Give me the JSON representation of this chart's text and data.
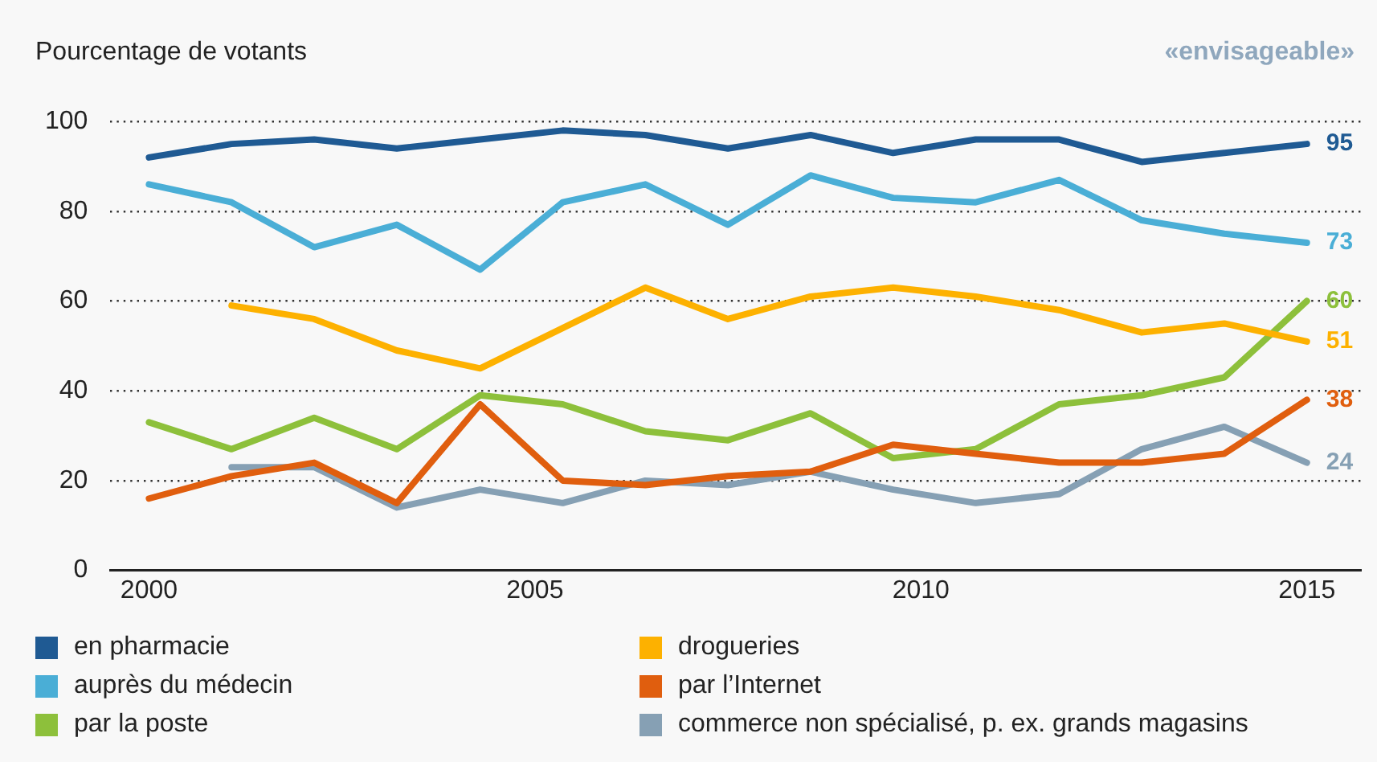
{
  "chart_data": {
    "type": "line",
    "ylabel": "Pourcentage de votants",
    "subtitle": "«envisageable»",
    "x": [
      2000,
      2001.07,
      2002.14,
      2003.21,
      2004.29,
      2005.36,
      2006.43,
      2007.5,
      2008.57,
      2009.64,
      2010.71,
      2011.79,
      2012.86,
      2013.93,
      2015
    ],
    "xlim": [
      1999.5,
      2015.7
    ],
    "xticks": [
      2000,
      2005,
      2010,
      2015
    ],
    "ylim": [
      0,
      100
    ],
    "yticks": [
      0,
      20,
      40,
      60,
      80,
      100
    ],
    "grid": "y",
    "legend": "bottom",
    "series": [
      {
        "name": "en pharmacie",
        "color": "#1f5a93",
        "values": [
          92,
          95,
          96,
          94,
          96,
          98,
          97,
          94,
          97,
          93,
          96,
          96,
          91,
          93,
          95
        ],
        "value_labels": [
          null,
          null,
          null,
          null,
          null,
          null,
          null,
          null,
          null,
          null,
          null,
          null,
          null,
          null,
          "95"
        ]
      },
      {
        "name": "drogueries",
        "color": "#fdb100",
        "values": [
          null,
          59,
          56,
          49,
          45,
          54,
          63,
          56,
          61,
          63,
          61,
          58,
          53,
          55,
          51
        ],
        "value_labels": [
          null,
          null,
          null,
          null,
          null,
          null,
          null,
          null,
          null,
          null,
          null,
          null,
          null,
          null,
          "51"
        ]
      },
      {
        "name": "auprès du médecin",
        "color": "#4aaed6",
        "values": [
          86,
          82,
          72,
          77,
          67,
          82,
          86,
          77,
          88,
          83,
          82,
          87,
          78,
          75,
          73
        ],
        "value_labels": [
          null,
          null,
          null,
          null,
          null,
          null,
          null,
          null,
          null,
          null,
          null,
          null,
          null,
          null,
          "73"
        ]
      },
      {
        "name": "par l’Internet",
        "color": "#e05e0e",
        "values": [
          16,
          21,
          24,
          15,
          37,
          20,
          19,
          21,
          22,
          28,
          26,
          24,
          24,
          26,
          38
        ],
        "value_labels": [
          null,
          null,
          null,
          null,
          null,
          null,
          null,
          null,
          null,
          null,
          null,
          null,
          null,
          null,
          "38"
        ]
      },
      {
        "name": "par la poste",
        "color": "#8dc03b",
        "values": [
          33,
          27,
          34,
          27,
          39,
          37,
          31,
          29,
          35,
          25,
          27,
          37,
          39,
          43,
          60
        ],
        "value_labels": [
          null,
          null,
          null,
          null,
          null,
          null,
          null,
          null,
          null,
          null,
          null,
          null,
          null,
          null,
          "60"
        ]
      },
      {
        "name": "commerce non spécialisé, p. ex. grands magasins",
        "color": "#86a0b4",
        "values": [
          null,
          23,
          23,
          14,
          18,
          15,
          20,
          19,
          22,
          18,
          15,
          17,
          27,
          32,
          24
        ],
        "value_labels": [
          null,
          null,
          null,
          null,
          null,
          null,
          null,
          null,
          null,
          null,
          null,
          null,
          null,
          null,
          "24"
        ]
      }
    ]
  }
}
